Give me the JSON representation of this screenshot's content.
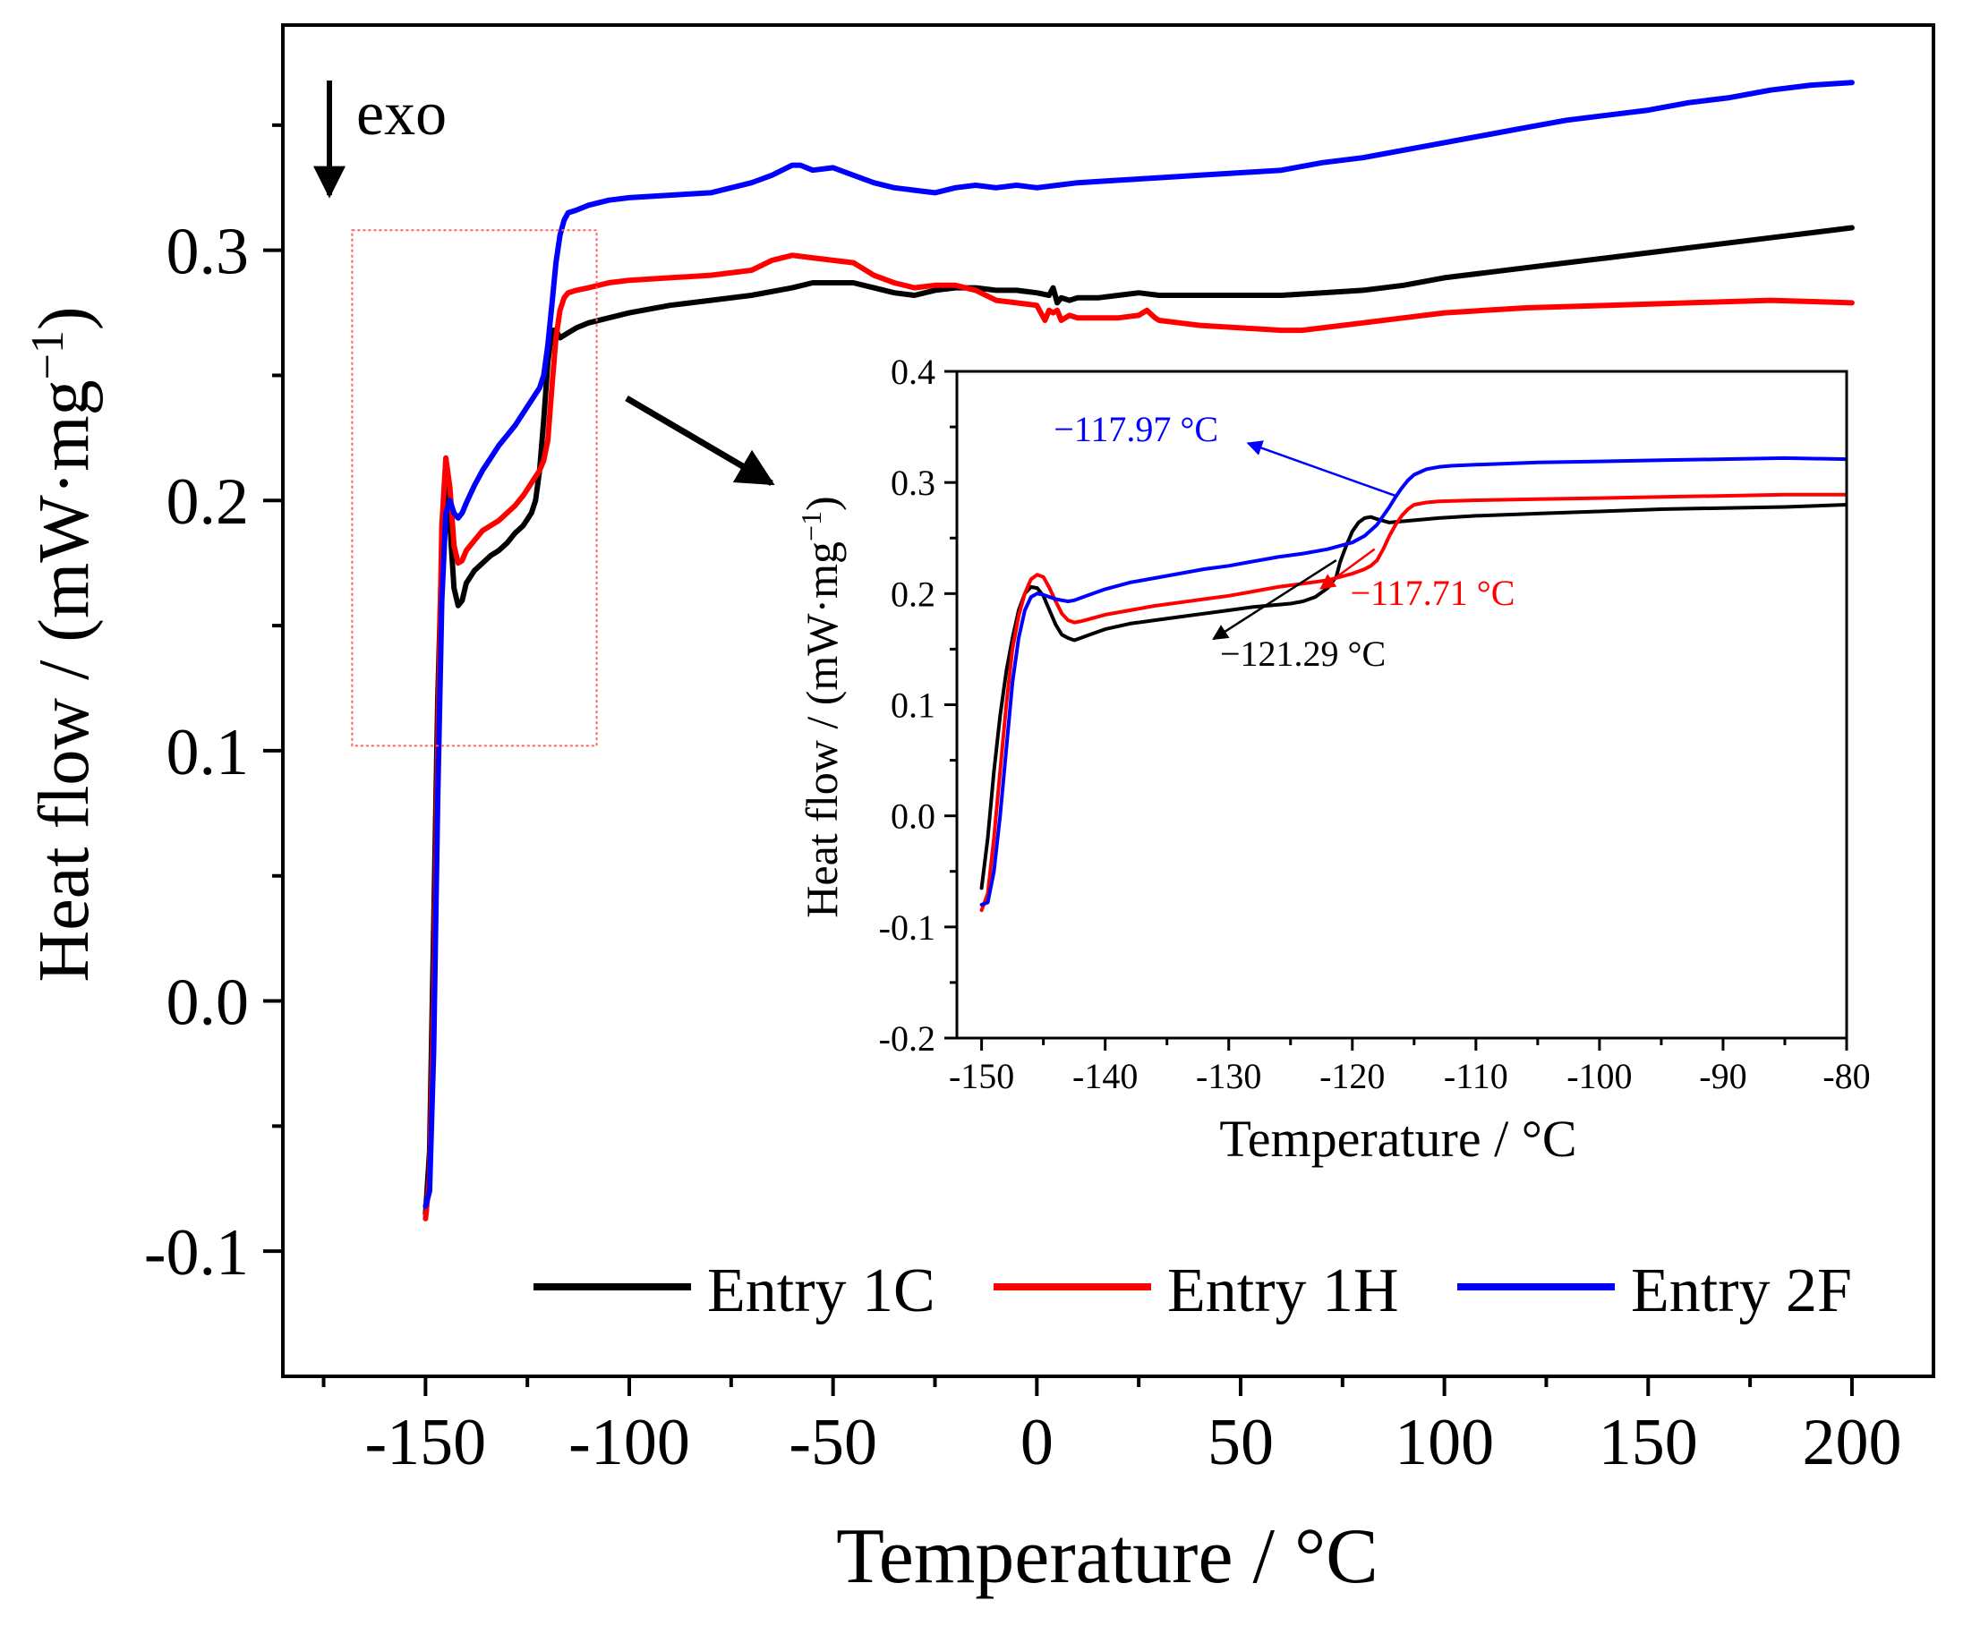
{
  "chart_data": [
    {
      "type": "line",
      "id": "main",
      "title": "",
      "xlabel": "Temperature  /  °C",
      "ylabel": "Heat flow / (mW·mg⁻¹)",
      "ylabel_main": "Heat flow / (mW·mg",
      "ylabel_sup": "−1",
      "ylabel_close": ")",
      "xlim": [
        -185,
        220
      ],
      "ylim": [
        -0.15,
        0.39
      ],
      "xticks": [
        -150,
        -100,
        -50,
        0,
        50,
        100,
        150,
        200
      ],
      "xtick_labels": [
        "-150",
        "-100",
        "-50",
        "0",
        "50",
        "100",
        "150",
        "200"
      ],
      "yticks": [
        -0.1,
        0.0,
        0.1,
        0.2,
        0.3
      ],
      "ytick_labels": [
        "-0.1",
        "0.0",
        "0.1",
        "0.2",
        "0.3"
      ],
      "grid": false,
      "legend_position": "bottom-right",
      "exo_label": "exo",
      "zoom_box": {
        "x": [
          -168,
          -108
        ],
        "y": [
          0.102,
          0.308
        ]
      },
      "series": [
        {
          "name": "Entry 1C",
          "color": "#000000",
          "x": [
            -150,
            -149,
            -148,
            -147,
            -146,
            -145,
            -144,
            -143,
            -142,
            -141,
            -140,
            -138,
            -136,
            -134,
            -132,
            -130,
            -128,
            -126,
            -124,
            -123,
            -122,
            -121,
            -120,
            -119,
            -118,
            -117,
            -116,
            -115,
            -113,
            -110,
            -105,
            -100,
            -90,
            -80,
            -70,
            -60,
            -55,
            -50,
            -45,
            -40,
            -35,
            -30,
            -25,
            -20,
            -15,
            -10,
            -5,
            0,
            3,
            4,
            5,
            6,
            8,
            10,
            15,
            20,
            25,
            30,
            40,
            50,
            60,
            70,
            80,
            90,
            100,
            110,
            120,
            130,
            140,
            150,
            160,
            170,
            180,
            190,
            200
          ],
          "values": [
            -0.085,
            -0.06,
            0.03,
            0.12,
            0.18,
            0.205,
            0.19,
            0.165,
            0.158,
            0.16,
            0.167,
            0.172,
            0.175,
            0.178,
            0.18,
            0.183,
            0.187,
            0.19,
            0.195,
            0.2,
            0.212,
            0.232,
            0.255,
            0.268,
            0.268,
            0.265,
            0.266,
            0.267,
            0.269,
            0.271,
            0.273,
            0.275,
            0.278,
            0.28,
            0.282,
            0.285,
            0.287,
            0.287,
            0.287,
            0.285,
            0.283,
            0.282,
            0.284,
            0.285,
            0.285,
            0.284,
            0.284,
            0.283,
            0.282,
            0.285,
            0.279,
            0.281,
            0.28,
            0.281,
            0.281,
            0.282,
            0.283,
            0.282,
            0.282,
            0.282,
            0.282,
            0.283,
            0.284,
            0.286,
            0.289,
            0.291,
            0.293,
            0.295,
            0.297,
            0.299,
            0.301,
            0.303,
            0.305,
            0.307,
            0.309
          ]
        },
        {
          "name": "Entry 1H",
          "color": "#ff0000",
          "x": [
            -150,
            -149,
            -148,
            -147,
            -146,
            -145,
            -144,
            -143,
            -142,
            -141,
            -140,
            -138,
            -136,
            -134,
            -132,
            -130,
            -128,
            -126,
            -124,
            -122,
            -121,
            -120,
            -119,
            -118,
            -117,
            -116,
            -115,
            -113,
            -110,
            -105,
            -100,
            -90,
            -80,
            -70,
            -65,
            -60,
            -55,
            -50,
            -45,
            -40,
            -35,
            -30,
            -25,
            -20,
            -15,
            -10,
            -5,
            0,
            2,
            3,
            4,
            5,
            6,
            8,
            10,
            15,
            20,
            25,
            27,
            29,
            30,
            35,
            40,
            50,
            60,
            65,
            70,
            80,
            90,
            100,
            120,
            140,
            160,
            180,
            200
          ],
          "values": [
            -0.087,
            -0.07,
            0.0,
            0.1,
            0.19,
            0.217,
            0.205,
            0.182,
            0.175,
            0.176,
            0.18,
            0.184,
            0.188,
            0.19,
            0.192,
            0.195,
            0.198,
            0.202,
            0.207,
            0.212,
            0.216,
            0.224,
            0.245,
            0.265,
            0.276,
            0.281,
            0.283,
            0.284,
            0.285,
            0.287,
            0.288,
            0.289,
            0.29,
            0.292,
            0.296,
            0.298,
            0.297,
            0.296,
            0.295,
            0.29,
            0.287,
            0.285,
            0.286,
            0.286,
            0.284,
            0.28,
            0.279,
            0.278,
            0.272,
            0.276,
            0.275,
            0.276,
            0.272,
            0.274,
            0.273,
            0.273,
            0.273,
            0.274,
            0.276,
            0.273,
            0.272,
            0.271,
            0.27,
            0.269,
            0.268,
            0.268,
            0.269,
            0.271,
            0.273,
            0.275,
            0.277,
            0.278,
            0.279,
            0.28,
            0.279
          ]
        },
        {
          "name": "Entry 2F",
          "color": "#0000ff",
          "x": [
            -150,
            -149,
            -148,
            -147,
            -146,
            -145,
            -144,
            -143,
            -142,
            -141,
            -140,
            -138,
            -136,
            -134,
            -132,
            -130,
            -128,
            -126,
            -124,
            -122,
            -121,
            -120,
            -119,
            -118,
            -117,
            -116,
            -115,
            -113,
            -110,
            -105,
            -100,
            -90,
            -80,
            -70,
            -65,
            -60,
            -58,
            -55,
            -50,
            -45,
            -40,
            -35,
            -30,
            -25,
            -20,
            -15,
            -10,
            -5,
            0,
            5,
            10,
            20,
            30,
            40,
            50,
            60,
            70,
            80,
            90,
            100,
            110,
            120,
            130,
            140,
            150,
            160,
            170,
            180,
            190,
            200
          ],
          "values": [
            -0.082,
            -0.076,
            -0.02,
            0.08,
            0.16,
            0.195,
            0.2,
            0.195,
            0.193,
            0.195,
            0.199,
            0.206,
            0.212,
            0.217,
            0.222,
            0.226,
            0.23,
            0.235,
            0.24,
            0.245,
            0.25,
            0.262,
            0.278,
            0.295,
            0.306,
            0.312,
            0.315,
            0.316,
            0.318,
            0.32,
            0.321,
            0.322,
            0.323,
            0.327,
            0.33,
            0.334,
            0.334,
            0.332,
            0.333,
            0.33,
            0.327,
            0.325,
            0.324,
            0.323,
            0.325,
            0.326,
            0.325,
            0.326,
            0.325,
            0.326,
            0.327,
            0.328,
            0.329,
            0.33,
            0.331,
            0.332,
            0.335,
            0.337,
            0.34,
            0.343,
            0.346,
            0.349,
            0.352,
            0.354,
            0.356,
            0.359,
            0.361,
            0.364,
            0.366,
            0.367
          ]
        }
      ]
    },
    {
      "type": "line",
      "id": "inset",
      "title": "",
      "xlabel": "Temperature  /  °C",
      "ylabel": "Heat flow / (mW·mg⁻¹)",
      "ylabel_main": "Heat flow / (mW·mg",
      "ylabel_sup": "−1",
      "ylabel_close": ")",
      "xlim": [
        -152,
        -80
      ],
      "ylim": [
        -0.2,
        0.4
      ],
      "xticks": [
        -150,
        -140,
        -130,
        -120,
        -110,
        -100,
        -90,
        -80
      ],
      "xtick_labels": [
        "-150",
        "-140",
        "-130",
        "-120",
        "-110",
        "-100",
        "-90",
        "-80"
      ],
      "yticks": [
        -0.2,
        -0.1,
        0.0,
        0.1,
        0.2,
        0.3,
        0.4
      ],
      "ytick_labels": [
        "-0.2",
        "-0.1",
        "0.0",
        "0.1",
        "0.2",
        "0.3",
        "0.4"
      ],
      "grid": false,
      "annotations": [
        {
          "text": "−117.97 °C",
          "color": "#0000ff",
          "point": [
            -116.5,
            0.288
          ],
          "text_anchor_data": [
            -137.5,
            0.337
          ]
        },
        {
          "text": "−117.71 °C",
          "color": "#ff0000",
          "point": [
            -118.2,
            0.24
          ],
          "text_anchor_data": [
            -113.5,
            0.19
          ]
        },
        {
          "text": "−121.29 °C",
          "color": "#000000",
          "point": [
            -121.3,
            0.23
          ],
          "text_anchor_data": [
            -124,
            0.135
          ]
        }
      ],
      "series": [
        {
          "name": "Entry 1C",
          "color": "#000000",
          "x": [
            -150,
            -149.5,
            -149,
            -148.5,
            -148,
            -147.5,
            -147,
            -146.5,
            -146,
            -145.5,
            -145,
            -144.5,
            -144,
            -143.5,
            -143,
            -142.5,
            -142,
            -141,
            -140,
            -138,
            -136,
            -134,
            -132,
            -130,
            -128,
            -126,
            -125,
            -124,
            -123,
            -122,
            -121.3,
            -121,
            -120.5,
            -120,
            -119.5,
            -119,
            -118.5,
            -118,
            -117,
            -116,
            -115,
            -113,
            -110,
            -105,
            -100,
            -95,
            -90,
            -85,
            -80
          ],
          "values": [
            -0.065,
            -0.02,
            0.04,
            0.09,
            0.13,
            0.16,
            0.185,
            0.2,
            0.206,
            0.205,
            0.198,
            0.185,
            0.172,
            0.163,
            0.16,
            0.158,
            0.16,
            0.164,
            0.168,
            0.173,
            0.176,
            0.179,
            0.182,
            0.185,
            0.188,
            0.19,
            0.191,
            0.193,
            0.197,
            0.205,
            0.215,
            0.228,
            0.243,
            0.256,
            0.264,
            0.268,
            0.269,
            0.267,
            0.264,
            0.265,
            0.266,
            0.268,
            0.27,
            0.272,
            0.274,
            0.276,
            0.277,
            0.278,
            0.28
          ]
        },
        {
          "name": "Entry 1H",
          "color": "#ff0000",
          "x": [
            -150,
            -149.5,
            -149,
            -148.5,
            -148,
            -147.5,
            -147,
            -146.5,
            -146,
            -145.5,
            -145,
            -144.5,
            -144,
            -143.5,
            -143,
            -142.5,
            -142,
            -141,
            -140,
            -138,
            -136,
            -134,
            -132,
            -130,
            -128,
            -126,
            -124,
            -122,
            -120,
            -119,
            -118.5,
            -118,
            -117.5,
            -117,
            -116.5,
            -116,
            -115.5,
            -115,
            -114,
            -113,
            -110,
            -105,
            -100,
            -95,
            -90,
            -85,
            -80
          ],
          "values": [
            -0.085,
            -0.07,
            -0.02,
            0.04,
            0.1,
            0.15,
            0.18,
            0.2,
            0.213,
            0.217,
            0.215,
            0.205,
            0.193,
            0.182,
            0.176,
            0.174,
            0.175,
            0.178,
            0.181,
            0.185,
            0.189,
            0.192,
            0.195,
            0.198,
            0.202,
            0.206,
            0.209,
            0.212,
            0.218,
            0.222,
            0.225,
            0.23,
            0.24,
            0.252,
            0.262,
            0.27,
            0.276,
            0.28,
            0.282,
            0.283,
            0.284,
            0.285,
            0.286,
            0.287,
            0.288,
            0.289,
            0.289
          ]
        },
        {
          "name": "Entry 2F",
          "color": "#0000ff",
          "x": [
            -150,
            -149.5,
            -149,
            -148.5,
            -148,
            -147.5,
            -147,
            -146.5,
            -146,
            -145.5,
            -145,
            -144.5,
            -144,
            -143.5,
            -143,
            -142.5,
            -142,
            -141,
            -140,
            -138,
            -136,
            -134,
            -132,
            -130,
            -128,
            -126,
            -124,
            -122,
            -120,
            -119,
            -118,
            -117.5,
            -117,
            -116.5,
            -116,
            -115.5,
            -115,
            -114,
            -113,
            -112,
            -110,
            -105,
            -100,
            -95,
            -90,
            -85,
            -80
          ],
          "values": [
            -0.08,
            -0.078,
            -0.05,
            0.0,
            0.06,
            0.12,
            0.16,
            0.185,
            0.197,
            0.2,
            0.199,
            0.197,
            0.195,
            0.194,
            0.193,
            0.194,
            0.196,
            0.2,
            0.204,
            0.21,
            0.214,
            0.218,
            0.222,
            0.225,
            0.229,
            0.233,
            0.236,
            0.24,
            0.246,
            0.252,
            0.262,
            0.27,
            0.278,
            0.287,
            0.295,
            0.302,
            0.307,
            0.312,
            0.314,
            0.315,
            0.316,
            0.318,
            0.319,
            0.32,
            0.321,
            0.322,
            0.321
          ]
        }
      ]
    }
  ]
}
